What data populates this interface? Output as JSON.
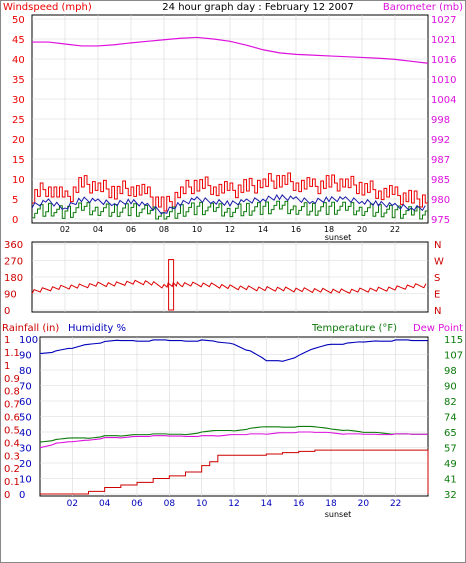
{
  "header": {
    "title": "24 hour graph day : February 12 2007",
    "windspeed_label": "Windspeed (mph)",
    "barometer_label": "Barometer (mb)"
  },
  "colors": {
    "wind": "#ee0000",
    "gust_line": "#1a1aa8",
    "avg_wind": "#0a7a0a",
    "barometer": "#dd11dd",
    "direction": "#dd0000",
    "humidity": "#0000bb",
    "temperature": "#0a7a0a",
    "dew_point": "#dd11dd",
    "rainfall": "#cc0000",
    "frame": "#000000",
    "grid": "#d8d8d8"
  },
  "panels": {
    "wind": {
      "left_ticks": [
        "50",
        "45",
        "40",
        "35",
        "30",
        "25",
        "20",
        "15",
        "10",
        "5",
        "0"
      ],
      "right_ticks": [
        "1027",
        "1021",
        "1016",
        "1010",
        "1004",
        "998",
        "992",
        "987",
        "985",
        "980",
        "975"
      ],
      "x_ticks": [
        "02",
        "04",
        "06",
        "08",
        "10",
        "12",
        "14",
        "16",
        "18",
        "20",
        "22"
      ],
      "sunset_label": "sunset"
    },
    "direction": {
      "left_ticks": [
        "360",
        "270",
        "180",
        "90",
        "0"
      ],
      "right_ticks": [
        "N",
        "W",
        "S",
        "E",
        "N"
      ]
    },
    "thp": {
      "rain_label": "Rainfall (in)",
      "humidity_label": "Humidity %",
      "temperature_label": "Temperature (°F)",
      "dewpoint_label": "Dew Point",
      "rain_ticks": [
        "1",
        "1.1",
        "1",
        "0.9",
        "0.8",
        "0.7",
        "0.6",
        "0.5",
        "0.4",
        "0.3",
        "0.2",
        "0.1",
        "0"
      ],
      "humidity_ticks": [
        "100",
        "90",
        "80",
        "70",
        "60",
        "50",
        "40",
        "30",
        "20",
        "10",
        "0"
      ],
      "temp_ticks": [
        "115",
        "107",
        "98",
        "90",
        "82",
        "74",
        "65",
        "57",
        "49",
        "41",
        "32"
      ],
      "x_ticks": [
        "02",
        "04",
        "06",
        "08",
        "10",
        "12",
        "14",
        "16",
        "18",
        "20",
        "22"
      ],
      "sunset_label": "sunset"
    }
  },
  "chart_data": [
    {
      "type": "line",
      "title": "24 hour graph day : February 12 2007",
      "ylabel": "Windspeed (mph)",
      "y2label": "Barometer (mb)",
      "xlim": [
        0,
        24
      ],
      "ylim": [
        0,
        50
      ],
      "y2lim": [
        975,
        1027
      ],
      "series": [
        {
          "name": "Windspeed (mph)",
          "axis": "left",
          "x": [
            0,
            1,
            2,
            3,
            4,
            5,
            6,
            7,
            8,
            9,
            10,
            11,
            12,
            13,
            14,
            15,
            16,
            17,
            18,
            19,
            20,
            21,
            22,
            23,
            24
          ],
          "values": [
            6,
            8,
            5,
            9,
            8,
            7,
            8,
            6,
            3,
            7,
            9,
            8,
            7,
            8,
            9,
            10,
            9,
            8,
            9,
            9,
            8,
            7,
            6,
            5,
            5
          ]
        },
        {
          "name": "Barometer (mb)",
          "axis": "right",
          "x": [
            0,
            1,
            2,
            3,
            4,
            5,
            6,
            7,
            8,
            9,
            10,
            11,
            12,
            13,
            14,
            15,
            16,
            17,
            18,
            19,
            20,
            21,
            22,
            23,
            24
          ],
          "values": [
            1021,
            1021,
            1020.5,
            1020,
            1020,
            1020.3,
            1020.8,
            1021.2,
            1021.6,
            1022,
            1022.2,
            1021.8,
            1021.2,
            1020.2,
            1019,
            1018.2,
            1017.8,
            1017.6,
            1017.4,
            1017.2,
            1017,
            1016.8,
            1016.5,
            1016,
            1015.5
          ]
        }
      ]
    },
    {
      "type": "line",
      "ylim": [
        0,
        360
      ],
      "series": [
        {
          "name": "",
          "x": [
            0,
            1,
            2,
            3,
            4,
            5,
            6,
            7,
            8,
            8.5,
            9,
            10,
            11,
            12,
            13,
            14,
            15,
            16,
            17,
            18,
            19,
            20,
            21,
            22,
            23,
            24
          ],
          "values": [
            100,
            115,
            125,
            130,
            140,
            140,
            150,
            150,
            130,
            140,
            140,
            140,
            135,
            125,
            120,
            115,
            115,
            110,
            108,
            105,
            102,
            108,
            112,
            118,
            130,
            135
          ]
        }
      ]
    },
    {
      "type": "line",
      "ylim": [
        0,
        100
      ],
      "y2lim": [
        32,
        115
      ],
      "series": [
        {
          "name": "Humidity %",
          "x": [
            0,
            1,
            2,
            3,
            4,
            5,
            6,
            7,
            8,
            9,
            10,
            11,
            12,
            13,
            14,
            15,
            16,
            17,
            18,
            19,
            20,
            21,
            22,
            23,
            24
          ],
          "values": [
            91,
            92,
            94,
            97,
            98,
            99,
            99,
            99,
            99,
            99,
            99,
            98,
            97,
            92,
            86,
            86,
            89,
            94,
            97,
            97,
            98,
            99,
            99,
            99,
            99
          ]
        },
        {
          "name": "Temperature (°F)",
          "x": [
            0,
            1,
            2,
            3,
            4,
            5,
            6,
            7,
            8,
            9,
            10,
            11,
            12,
            13,
            14,
            15,
            16,
            17,
            18,
            19,
            20,
            21,
            22,
            23,
            24
          ],
          "values": [
            60,
            61,
            62,
            62,
            63,
            63,
            64,
            64,
            64,
            64,
            65,
            66,
            66,
            67,
            68,
            68,
            68,
            68,
            67,
            66,
            65,
            65,
            64,
            64,
            64
          ]
        },
        {
          "name": "Dew Point",
          "x": [
            0,
            1,
            2,
            3,
            4,
            5,
            6,
            7,
            8,
            9,
            10,
            11,
            12,
            13,
            14,
            15,
            16,
            17,
            18,
            19,
            20,
            21,
            22,
            23,
            24
          ],
          "values": [
            57,
            59,
            60,
            61,
            62,
            62,
            63,
            63,
            63,
            63,
            63,
            63,
            64,
            64,
            64,
            65,
            65,
            65,
            65,
            64,
            64,
            64,
            64,
            64,
            64
          ]
        }
      ]
    },
    {
      "type": "line",
      "ylabel": "Rainfall (in)",
      "ylim": [
        0,
        1.2
      ],
      "series": [
        {
          "name": "Rainfall (in)",
          "x": [
            0,
            2,
            3,
            4,
            5,
            6,
            7,
            8,
            9,
            10,
            10.5,
            11,
            12,
            13,
            14,
            15,
            16,
            17,
            18,
            19,
            20,
            21,
            22,
            23,
            23.8,
            24
          ],
          "values": [
            0,
            0,
            0.02,
            0.05,
            0.07,
            0.09,
            0.12,
            0.14,
            0.17,
            0.22,
            0.25,
            0.3,
            0.3,
            0.3,
            0.31,
            0.32,
            0.33,
            0.34,
            0.34,
            0.34,
            0.34,
            0.34,
            0.34,
            0.34,
            0.34,
            0
          ]
        }
      ]
    }
  ]
}
